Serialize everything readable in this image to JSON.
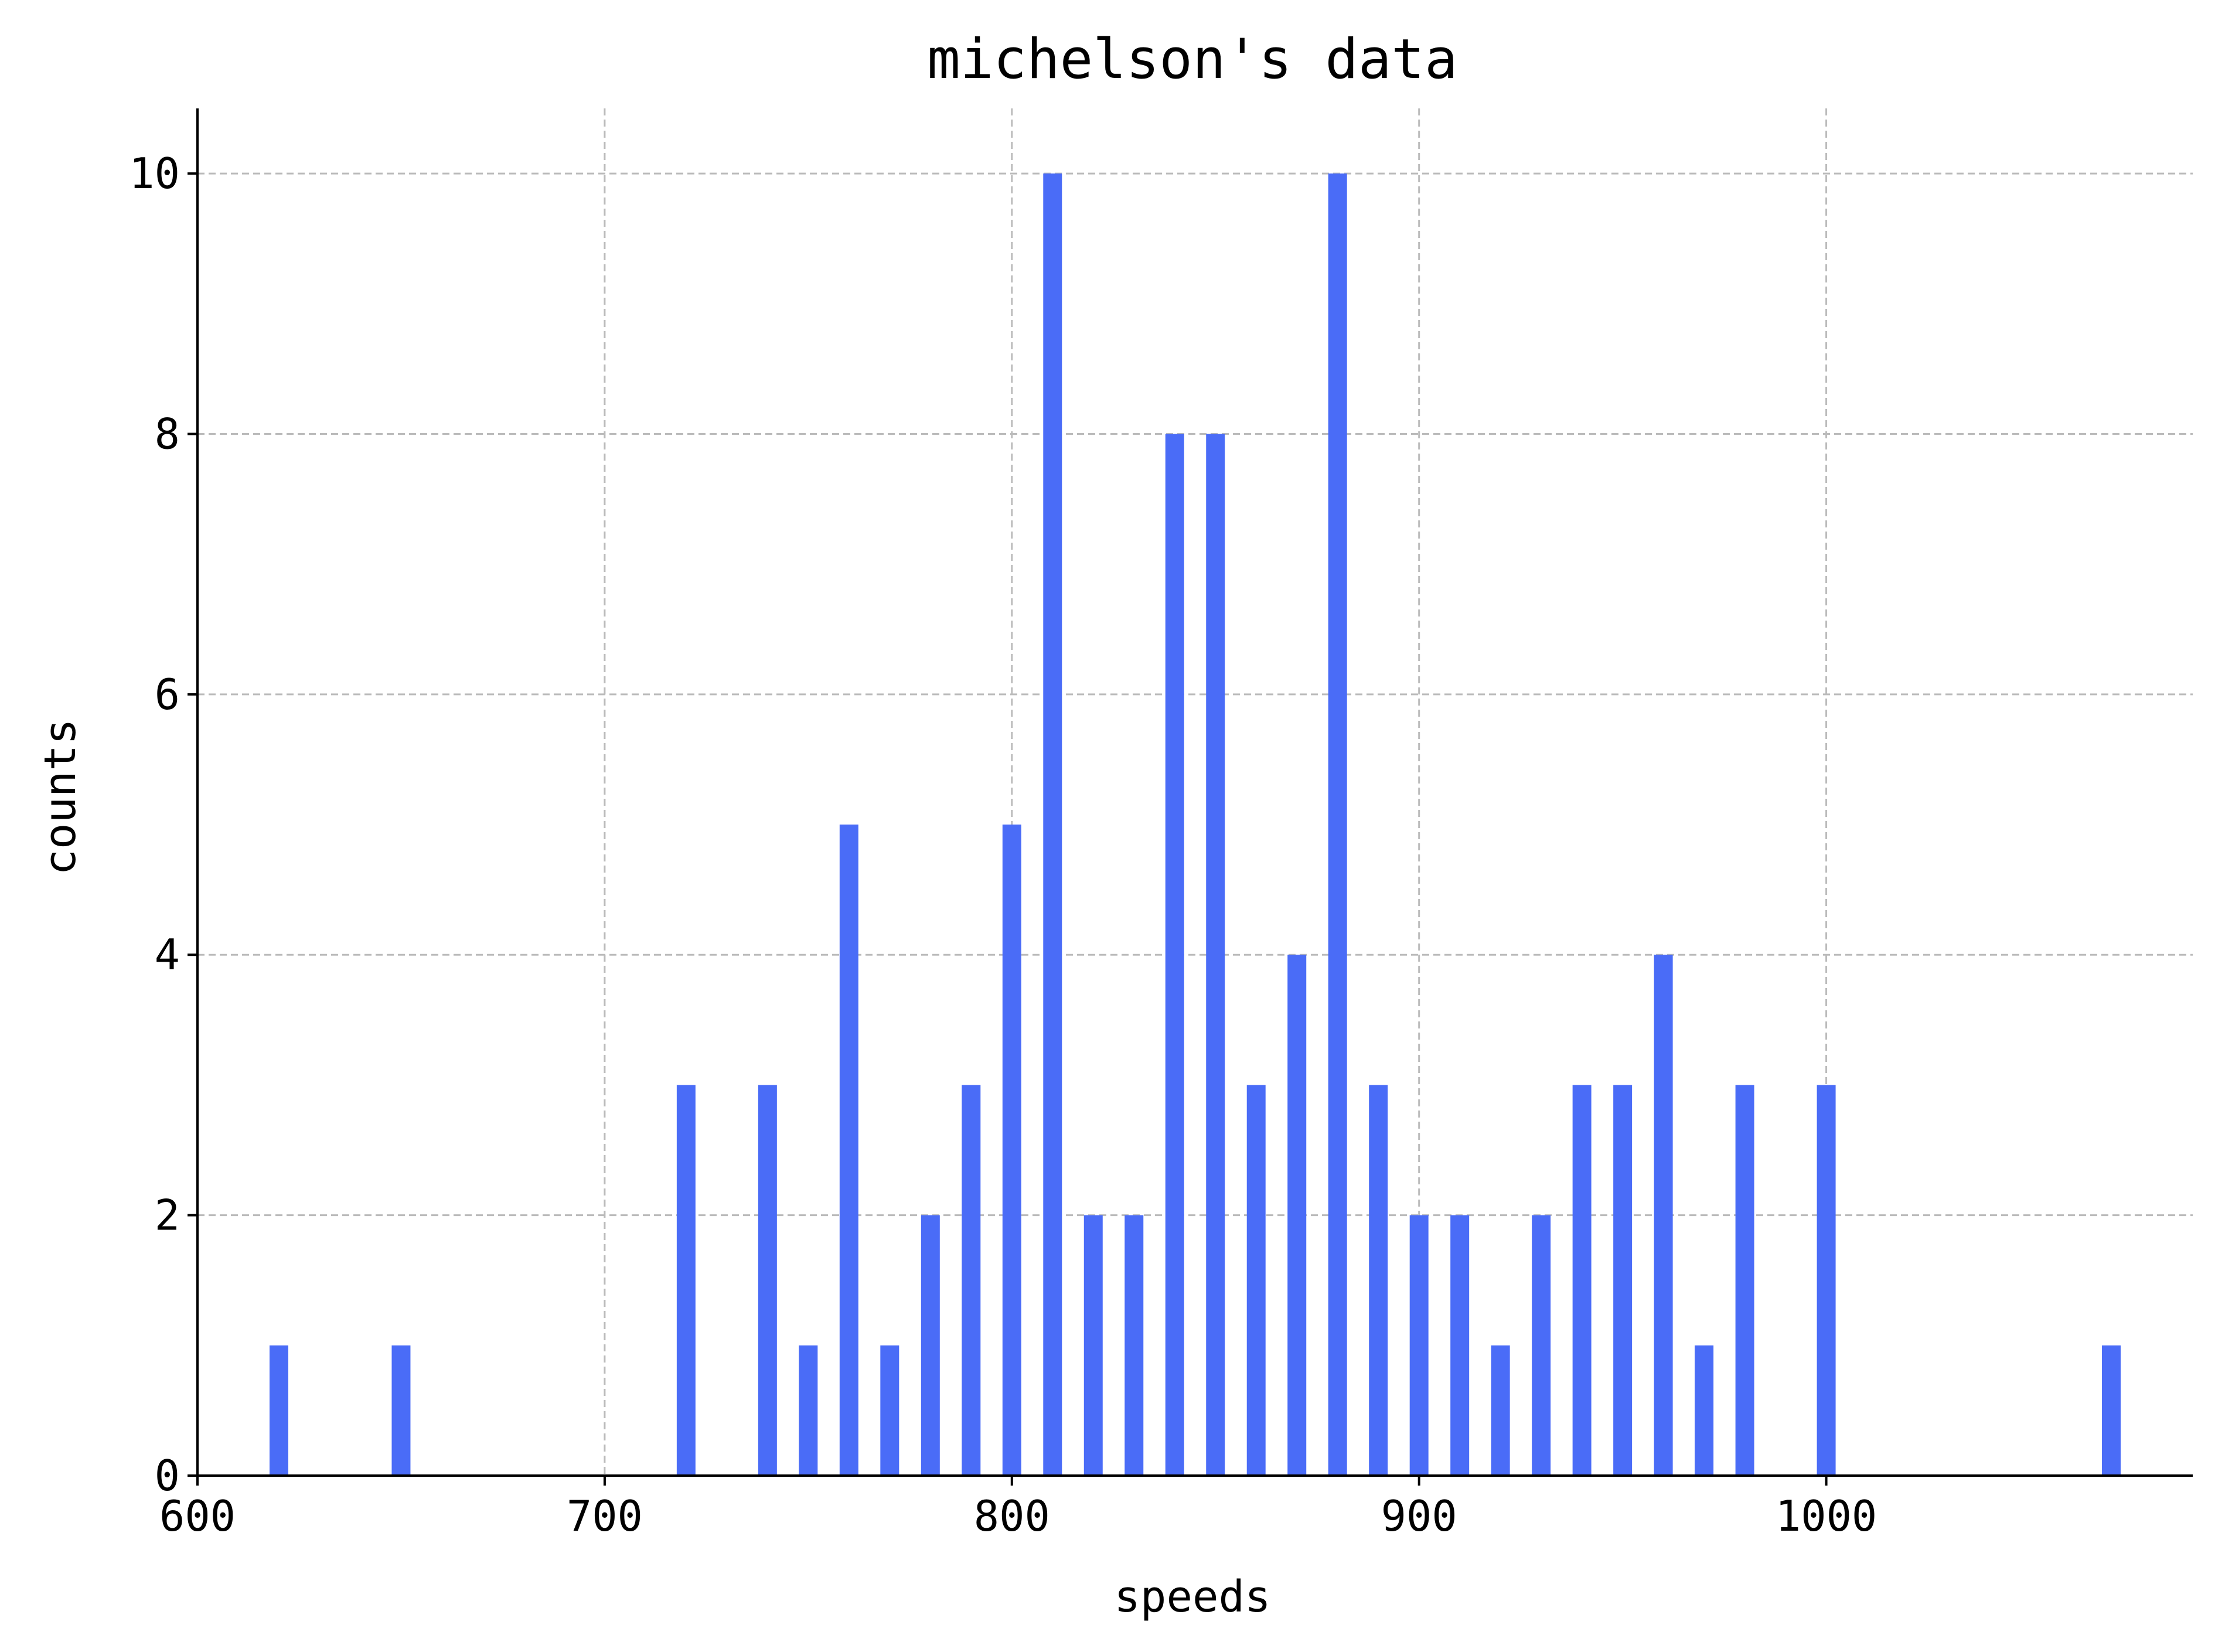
{
  "chart_data": {
    "type": "bar",
    "title": "michelson's data",
    "xlabel": "speeds",
    "ylabel": "counts",
    "xlim": [
      600,
      1090
    ],
    "ylim": [
      0,
      10.5
    ],
    "xticks": [
      600,
      700,
      800,
      900,
      1000
    ],
    "yticks": [
      0,
      2,
      4,
      6,
      8,
      10
    ],
    "grid": true,
    "bar_color": "#4a6cf7",
    "bars": [
      {
        "x": 620,
        "count": 1
      },
      {
        "x": 650,
        "count": 1
      },
      {
        "x": 720,
        "count": 3
      },
      {
        "x": 740,
        "count": 3
      },
      {
        "x": 750,
        "count": 1
      },
      {
        "x": 760,
        "count": 5
      },
      {
        "x": 770,
        "count": 1
      },
      {
        "x": 780,
        "count": 2
      },
      {
        "x": 790,
        "count": 3
      },
      {
        "x": 800,
        "count": 5
      },
      {
        "x": 810,
        "count": 10
      },
      {
        "x": 820,
        "count": 2
      },
      {
        "x": 830,
        "count": 2
      },
      {
        "x": 840,
        "count": 8
      },
      {
        "x": 850,
        "count": 8
      },
      {
        "x": 860,
        "count": 3
      },
      {
        "x": 870,
        "count": 4
      },
      {
        "x": 880,
        "count": 10
      },
      {
        "x": 890,
        "count": 3
      },
      {
        "x": 900,
        "count": 2
      },
      {
        "x": 910,
        "count": 2
      },
      {
        "x": 920,
        "count": 1
      },
      {
        "x": 930,
        "count": 2
      },
      {
        "x": 940,
        "count": 3
      },
      {
        "x": 950,
        "count": 3
      },
      {
        "x": 960,
        "count": 4
      },
      {
        "x": 970,
        "count": 1
      },
      {
        "x": 980,
        "count": 3
      },
      {
        "x": 1000,
        "count": 3
      },
      {
        "x": 1070,
        "count": 1
      }
    ]
  }
}
